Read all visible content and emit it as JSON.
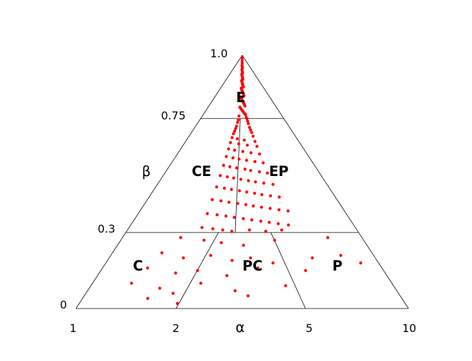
{
  "chart_data": {
    "type": "scatter",
    "title": "",
    "xlabel": "α",
    "ylabel": "β",
    "marker_color": "#ff0000",
    "line_color": "#000000",
    "grid": false,
    "x_scale": "log",
    "x_ticks": [
      {
        "label": "1",
        "value": 1
      },
      {
        "label": "2",
        "value": 2
      },
      {
        "label": "5",
        "value": 5
      },
      {
        "label": "10",
        "value": 10
      }
    ],
    "y_ticks": [
      {
        "label": "0",
        "value": 0
      },
      {
        "label": "0.3",
        "value": 0.3
      },
      {
        "label": "0.75",
        "value": 0.75
      },
      {
        "label": "1.0",
        "value": 1.0
      }
    ],
    "regions": [
      {
        "label": "E",
        "beta_range": [
          0.75,
          1.0
        ]
      },
      {
        "label": "CE",
        "beta_range": [
          0.3,
          0.75
        ]
      },
      {
        "label": "EP",
        "beta_range": [
          0.3,
          0.75
        ]
      },
      {
        "label": "C",
        "beta_range": [
          0,
          0.3
        ]
      },
      {
        "label": "PC",
        "beta_range": [
          0,
          0.3
        ]
      },
      {
        "label": "P",
        "beta_range": [
          0,
          0.3
        ]
      }
    ],
    "boundaries": [
      {
        "from": [
          1.0,
          0.0
        ],
        "to": [
          10.0,
          0.0
        ]
      },
      {
        "from": [
          1.0,
          0.0
        ],
        "to": [
          3.16,
          1.0
        ]
      },
      {
        "from": [
          10.0,
          0.0
        ],
        "to": [
          3.16,
          1.0
        ]
      },
      {
        "from": [
          1.0,
          0.3
        ],
        "to": [
          10.0,
          0.3
        ]
      },
      {
        "from": [
          1.0,
          0.75
        ],
        "to": [
          10.0,
          0.75
        ]
      },
      {
        "from": [
          3.0,
          0.75
        ],
        "to": [
          2.95,
          0.3
        ]
      },
      {
        "from": [
          2.5,
          0.3
        ],
        "to": [
          2.0,
          0.0
        ]
      },
      {
        "from": [
          4.2,
          0.3
        ],
        "to": [
          4.9,
          0.0
        ]
      }
    ],
    "points_note": "estimated positions of scatter points",
    "points": [
      [
        3.15,
        0.99
      ],
      [
        3.17,
        0.98
      ],
      [
        3.13,
        0.97
      ],
      [
        3.2,
        0.97
      ],
      [
        3.1,
        0.96
      ],
      [
        3.18,
        0.955
      ],
      [
        3.24,
        0.95
      ],
      [
        3.08,
        0.945
      ],
      [
        3.14,
        0.94
      ],
      [
        3.22,
        0.935
      ],
      [
        3.28,
        0.93
      ],
      [
        3.05,
        0.925
      ],
      [
        3.12,
        0.92
      ],
      [
        3.19,
        0.915
      ],
      [
        3.26,
        0.91
      ],
      [
        3.32,
        0.905
      ],
      [
        3.03,
        0.9
      ],
      [
        3.1,
        0.895
      ],
      [
        3.17,
        0.89
      ],
      [
        3.24,
        0.885
      ],
      [
        3.31,
        0.88
      ],
      [
        3.37,
        0.875
      ],
      [
        3.0,
        0.87
      ],
      [
        3.07,
        0.865
      ],
      [
        3.14,
        0.86
      ],
      [
        3.21,
        0.855
      ],
      [
        3.29,
        0.85
      ],
      [
        3.35,
        0.845
      ],
      [
        3.42,
        0.84
      ],
      [
        2.96,
        0.835
      ],
      [
        3.05,
        0.83
      ],
      [
        3.12,
        0.825
      ],
      [
        3.19,
        0.82
      ],
      [
        3.26,
        0.815
      ],
      [
        3.34,
        0.81
      ],
      [
        3.41,
        0.805
      ],
      [
        3.48,
        0.8
      ],
      [
        2.92,
        0.795
      ],
      [
        3.0,
        0.79
      ],
      [
        3.1,
        0.785
      ],
      [
        3.2,
        0.78
      ],
      [
        3.3,
        0.775
      ],
      [
        3.4,
        0.77
      ],
      [
        3.5,
        0.765
      ],
      [
        2.88,
        0.76
      ],
      [
        3.55,
        0.755
      ],
      [
        3.6,
        0.75
      ],
      [
        2.85,
        0.745
      ],
      [
        3.65,
        0.74
      ],
      [
        2.8,
        0.735
      ],
      [
        3.7,
        0.73
      ],
      [
        2.75,
        0.72
      ],
      [
        3.78,
        0.715
      ],
      [
        2.7,
        0.71
      ],
      [
        3.85,
        0.705
      ],
      [
        2.65,
        0.7
      ],
      [
        3.92,
        0.695
      ],
      [
        2.6,
        0.69
      ],
      [
        4.0,
        0.68
      ],
      [
        2.55,
        0.675
      ],
      [
        2.85,
        0.67
      ],
      [
        3.3,
        0.665
      ],
      [
        4.1,
        0.66
      ],
      [
        2.5,
        0.655
      ],
      [
        2.95,
        0.65
      ],
      [
        3.5,
        0.645
      ],
      [
        4.2,
        0.64
      ],
      [
        2.45,
        0.63
      ],
      [
        2.75,
        0.625
      ],
      [
        3.2,
        0.62
      ],
      [
        3.7,
        0.615
      ],
      [
        4.3,
        0.61
      ],
      [
        2.4,
        0.6
      ],
      [
        2.7,
        0.595
      ],
      [
        3.0,
        0.59
      ],
      [
        3.4,
        0.585
      ],
      [
        3.9,
        0.58
      ],
      [
        4.45,
        0.575
      ],
      [
        2.35,
        0.565
      ],
      [
        2.6,
        0.56
      ],
      [
        2.9,
        0.555
      ],
      [
        3.3,
        0.55
      ],
      [
        3.6,
        0.545
      ],
      [
        4.1,
        0.54
      ],
      [
        4.6,
        0.535
      ],
      [
        2.3,
        0.525
      ],
      [
        2.55,
        0.52
      ],
      [
        2.8,
        0.515
      ],
      [
        3.1,
        0.51
      ],
      [
        3.45,
        0.505
      ],
      [
        3.8,
        0.5
      ],
      [
        4.25,
        0.495
      ],
      [
        4.8,
        0.49
      ],
      [
        2.25,
        0.48
      ],
      [
        2.5,
        0.475
      ],
      [
        2.75,
        0.47
      ],
      [
        3.05,
        0.465
      ],
      [
        3.35,
        0.46
      ],
      [
        3.7,
        0.455
      ],
      [
        4.05,
        0.45
      ],
      [
        4.5,
        0.445
      ],
      [
        5.0,
        0.44
      ],
      [
        2.2,
        0.43
      ],
      [
        2.45,
        0.425
      ],
      [
        2.7,
        0.42
      ],
      [
        3.0,
        0.415
      ],
      [
        3.3,
        0.41
      ],
      [
        3.6,
        0.405
      ],
      [
        3.95,
        0.4
      ],
      [
        4.35,
        0.395
      ],
      [
        4.8,
        0.39
      ],
      [
        5.3,
        0.385
      ],
      [
        2.15,
        0.375
      ],
      [
        2.4,
        0.37
      ],
      [
        2.65,
        0.365
      ],
      [
        2.9,
        0.36
      ],
      [
        3.2,
        0.355
      ],
      [
        3.5,
        0.35
      ],
      [
        3.85,
        0.345
      ],
      [
        4.2,
        0.34
      ],
      [
        4.6,
        0.335
      ],
      [
        5.1,
        0.33
      ],
      [
        2.1,
        0.32
      ],
      [
        2.35,
        0.315
      ],
      [
        2.6,
        0.31
      ],
      [
        2.85,
        0.305
      ],
      [
        3.4,
        0.31
      ],
      [
        4.0,
        0.305
      ],
      [
        4.7,
        0.31
      ],
      [
        1.75,
        0.28
      ],
      [
        2.2,
        0.27
      ],
      [
        2.6,
        0.26
      ],
      [
        3.2,
        0.25
      ],
      [
        4.3,
        0.27
      ],
      [
        7.2,
        0.28
      ],
      [
        1.55,
        0.22
      ],
      [
        1.9,
        0.2
      ],
      [
        2.4,
        0.21
      ],
      [
        2.9,
        0.19
      ],
      [
        3.4,
        0.2
      ],
      [
        4.1,
        0.18
      ],
      [
        5.8,
        0.2
      ],
      [
        7.5,
        0.21
      ],
      [
        1.45,
        0.16
      ],
      [
        1.85,
        0.14
      ],
      [
        2.2,
        0.15
      ],
      [
        2.8,
        0.13
      ],
      [
        3.6,
        0.16
      ],
      [
        5.3,
        0.15
      ],
      [
        1.35,
        0.1
      ],
      [
        1.7,
        0.08
      ],
      [
        2.3,
        0.1
      ],
      [
        3.0,
        0.07
      ],
      [
        4.4,
        0.09
      ],
      [
        8.6,
        0.18
      ],
      [
        1.6,
        0.04
      ],
      [
        2.0,
        0.02
      ],
      [
        3.3,
        0.05
      ],
      [
        1.9,
        0.06
      ]
    ]
  }
}
